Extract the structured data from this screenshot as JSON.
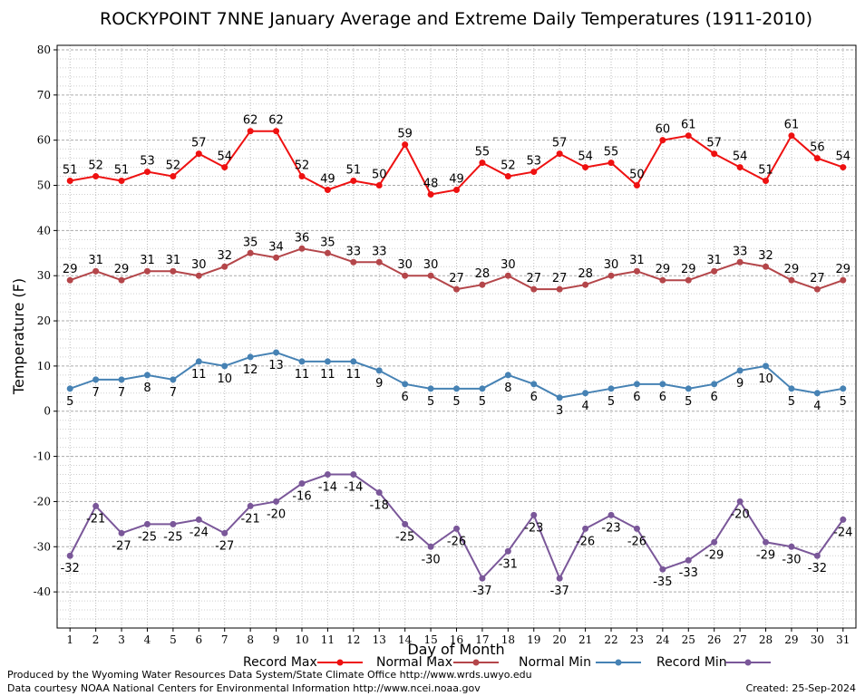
{
  "chart_data": {
    "type": "line",
    "title": "ROCKYPOINT 7NNE January Average and Extreme Daily Temperatures (1911-2010)",
    "xlabel": "Day of Month",
    "ylabel": "Temperature (F)",
    "ylim": [
      -48,
      81
    ],
    "yticks": [
      -40,
      -30,
      -20,
      -10,
      0,
      10,
      20,
      30,
      40,
      50,
      60,
      70,
      80
    ],
    "x": [
      1,
      2,
      3,
      4,
      5,
      6,
      7,
      8,
      9,
      10,
      11,
      12,
      13,
      14,
      15,
      16,
      17,
      18,
      19,
      20,
      21,
      22,
      23,
      24,
      25,
      26,
      27,
      28,
      29,
      30,
      31
    ],
    "grid": true,
    "legend_placement": "bottom",
    "series": [
      {
        "name": "Record Max",
        "color": "#ee1111",
        "values": [
          51,
          52,
          51,
          53,
          52,
          57,
          54,
          62,
          62,
          52,
          49,
          51,
          50,
          59,
          48,
          49,
          55,
          52,
          53,
          57,
          54,
          55,
          50,
          60,
          61,
          57,
          54,
          51,
          61,
          56,
          54
        ],
        "label_pos": "above"
      },
      {
        "name": "Normal Max",
        "color": "#b4464a",
        "values": [
          29,
          31,
          29,
          31,
          31,
          30,
          32,
          35,
          34,
          36,
          35,
          33,
          33,
          30,
          30,
          27,
          28,
          30,
          27,
          27,
          28,
          30,
          31,
          29,
          29,
          31,
          33,
          32,
          29,
          27,
          29
        ],
        "label_pos": "above"
      },
      {
        "name": "Normal Min",
        "color": "#4682b4",
        "values": [
          5,
          7,
          7,
          8,
          7,
          11,
          10,
          12,
          13,
          11,
          11,
          11,
          9,
          6,
          5,
          5,
          5,
          8,
          6,
          3,
          4,
          5,
          6,
          6,
          5,
          6,
          9,
          10,
          5,
          4,
          5
        ],
        "label_pos": "below"
      },
      {
        "name": "Record Min",
        "color": "#7a5799",
        "values": [
          -32,
          -21,
          -27,
          -25,
          -25,
          -24,
          -27,
          -21,
          -20,
          -16,
          -14,
          -14,
          -18,
          -25,
          -30,
          -26,
          -37,
          -31,
          -23,
          -37,
          -26,
          -23,
          -26,
          -35,
          -33,
          -29,
          -20,
          -29,
          -30,
          -32,
          -24
        ],
        "label_pos": "below"
      }
    ]
  },
  "footer": {
    "produced_by": "Produced by the Wyoming Water Resources Data System/State Climate Office http://www.wrds.uwyo.edu",
    "courtesy": "Data courtesy NOAA National Centers for Environmental Information http://www.ncei.noaa.gov",
    "created": "Created: 25-Sep-2024"
  }
}
